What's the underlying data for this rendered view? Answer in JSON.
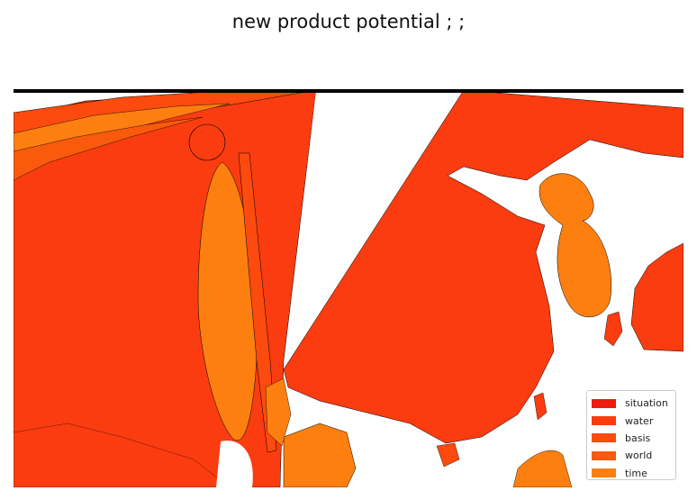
{
  "title": "new product potential ; ;",
  "legend": {
    "position": "lower-right",
    "items": [
      {
        "label": "situation",
        "color": "#ee1c0e"
      },
      {
        "label": "water",
        "color": "#fa3c10"
      },
      {
        "label": "basis",
        "color": "#fd4a0e"
      },
      {
        "label": "world",
        "color": "#f95a0c"
      },
      {
        "label": "time",
        "color": "#fc7f10"
      }
    ]
  },
  "map": {
    "type": "choropleth",
    "water_color": "#ffffff",
    "border_color": "#000000"
  }
}
